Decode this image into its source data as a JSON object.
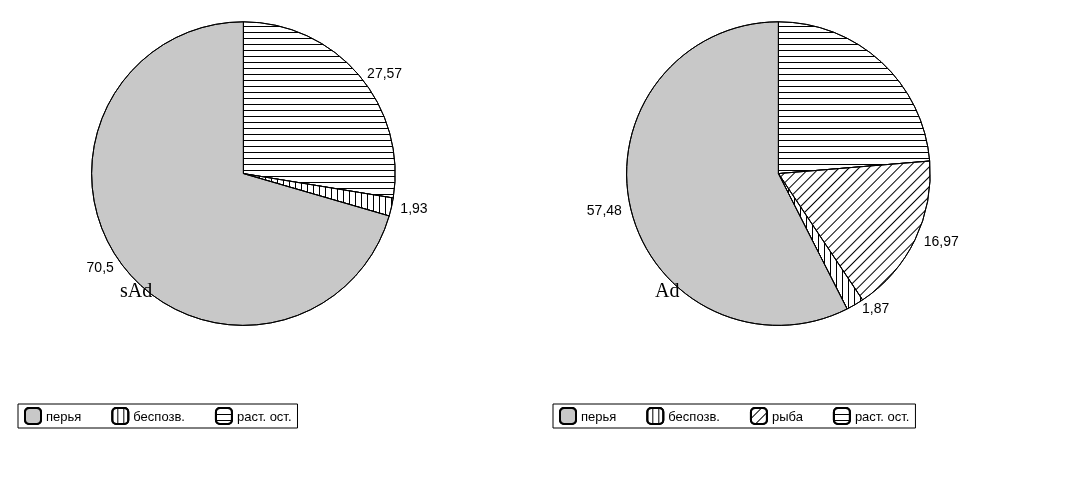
{
  "chart_data": [
    {
      "type": "pie",
      "title": "sAd",
      "categories": [
        "перья",
        "беспозв.",
        "раст. ост."
      ],
      "values": [
        70.5,
        1.93,
        27.57
      ],
      "value_labels": [
        "70,5",
        "1,93",
        "27,57"
      ],
      "colors": [
        "#c8c8c8",
        "#ffffff",
        "#ffffff"
      ],
      "legend": "bottom"
    },
    {
      "type": "pie",
      "title": "Ad",
      "categories": [
        "перья",
        "беспозв.",
        "рыба",
        "раст. ост."
      ],
      "values": [
        57.48,
        1.87,
        16.97,
        23.68
      ],
      "value_labels": [
        "57,48",
        "1,87",
        "16,97",
        null
      ],
      "colors": [
        "#c8c8c8",
        "#ffffff",
        "#ffffff",
        "#ffffff"
      ],
      "legend": "bottom"
    }
  ]
}
